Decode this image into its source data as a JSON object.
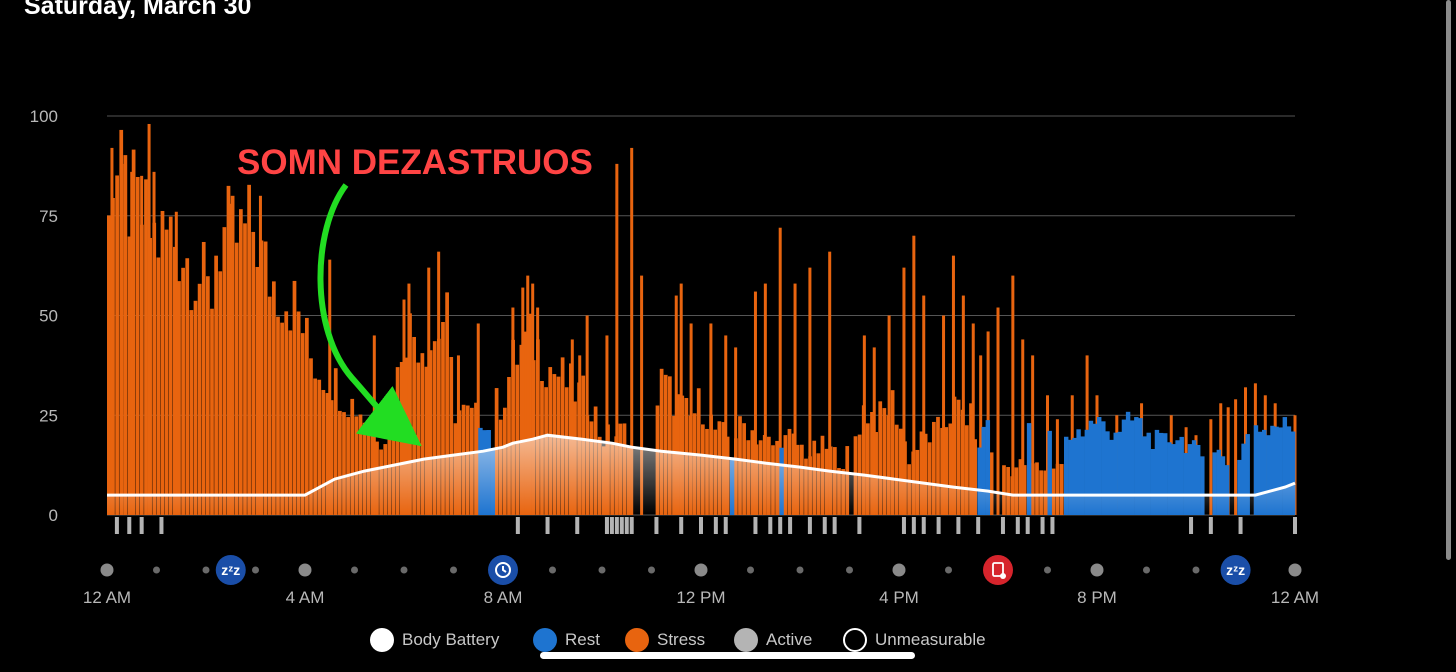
{
  "title": "Saturday, March 30",
  "annotation": {
    "text": "SOMN DEZASTRUOS",
    "color": "#ff4444",
    "arrow_color": "#22dd22"
  },
  "colors": {
    "stress": "#e8640f",
    "rest": "#1e74d0",
    "active": "#b4b4b4",
    "battery": "#ffffff",
    "grid": "#555555"
  },
  "timeline_icons": [
    "sleep-icon",
    "activity-icon",
    "stress-log-icon",
    "sleep-icon"
  ],
  "legend": [
    {
      "label": "Body Battery",
      "swatch": "#ffffff",
      "kind": "fill"
    },
    {
      "label": "Rest",
      "swatch": "#1e74d0",
      "kind": "fill"
    },
    {
      "label": "Stress",
      "swatch": "#e8640f",
      "kind": "fill"
    },
    {
      "label": "Active",
      "swatch": "#b4b4b4",
      "kind": "fill"
    },
    {
      "label": "Unmeasurable",
      "swatch": "#ffffff",
      "kind": "ring"
    }
  ],
  "chart_data": {
    "type": "bar",
    "x_unit": "hours after 12 AM",
    "x_range": [
      0,
      24
    ],
    "ylim": [
      0,
      100
    ],
    "yticks": [
      0,
      25,
      50,
      75,
      100
    ],
    "xticks": [
      {
        "label": "12 AM",
        "hour": 0
      },
      {
        "label": "4 AM",
        "hour": 4
      },
      {
        "label": "8 AM",
        "hour": 8
      },
      {
        "label": "12 PM",
        "hour": 12
      },
      {
        "label": "4 PM",
        "hour": 16
      },
      {
        "label": "8 PM",
        "hour": 20
      },
      {
        "label": "12 AM",
        "hour": 24
      }
    ],
    "grid": true,
    "stress_profile": [
      [
        0,
        90
      ],
      [
        0.2,
        88
      ],
      [
        0.4,
        84
      ],
      [
        0.6,
        80
      ],
      [
        0.8,
        76
      ],
      [
        1.0,
        72
      ],
      [
        1.3,
        74
      ],
      [
        1.5,
        70
      ],
      [
        1.8,
        64
      ],
      [
        2.0,
        60
      ],
      [
        2.1,
        55
      ],
      [
        2.2,
        70
      ],
      [
        2.4,
        74
      ],
      [
        2.6,
        72
      ],
      [
        2.8,
        74
      ],
      [
        3.0,
        76
      ],
      [
        3.1,
        68
      ],
      [
        3.3,
        62
      ],
      [
        3.6,
        58
      ],
      [
        3.8,
        55
      ],
      [
        4.0,
        48
      ],
      [
        4.1,
        42
      ],
      [
        4.3,
        38
      ],
      [
        4.6,
        35
      ],
      [
        4.9,
        30
      ],
      [
        5.1,
        28
      ],
      [
        5.3,
        24
      ],
      [
        5.6,
        20
      ],
      [
        5.8,
        28
      ],
      [
        6.0,
        50
      ],
      [
        6.2,
        48
      ],
      [
        6.4,
        46
      ],
      [
        6.6,
        45
      ],
      [
        6.8,
        52
      ],
      [
        6.9,
        50
      ],
      [
        7.0,
        28
      ],
      [
        7.3,
        26
      ],
      [
        7.6,
        25
      ],
      [
        7.8,
        28
      ],
      [
        8.0,
        30
      ],
      [
        8.2,
        40
      ],
      [
        8.4,
        44
      ],
      [
        8.6,
        46
      ],
      [
        8.8,
        42
      ],
      [
        9.0,
        38
      ],
      [
        9.2,
        36
      ],
      [
        9.5,
        32
      ],
      [
        9.8,
        30
      ],
      [
        10.0,
        20
      ],
      [
        10.5,
        22
      ],
      [
        11.0,
        20
      ],
      [
        11.2,
        35
      ],
      [
        11.5,
        30
      ],
      [
        11.8,
        25
      ],
      [
        12.0,
        30
      ],
      [
        12.3,
        22
      ],
      [
        12.6,
        20
      ],
      [
        12.9,
        24
      ],
      [
        13.2,
        20
      ],
      [
        13.5,
        18
      ],
      [
        13.8,
        20
      ],
      [
        14.2,
        16
      ],
      [
        14.5,
        18
      ],
      [
        14.9,
        14
      ],
      [
        15.1,
        20
      ],
      [
        15.3,
        28
      ],
      [
        15.6,
        25
      ],
      [
        15.9,
        30
      ],
      [
        16.2,
        15
      ],
      [
        16.5,
        20
      ],
      [
        16.8,
        22
      ],
      [
        17.1,
        28
      ],
      [
        17.4,
        26
      ],
      [
        17.7,
        20
      ],
      [
        18.0,
        14
      ],
      [
        18.3,
        12
      ],
      [
        18.6,
        14
      ],
      [
        18.9,
        12
      ],
      [
        19.2,
        14
      ],
      [
        19.5,
        10
      ],
      [
        20.0,
        0
      ],
      [
        22.1,
        0
      ],
      [
        22.4,
        0
      ],
      [
        22.9,
        0
      ],
      [
        23.2,
        0
      ],
      [
        24,
        0
      ]
    ],
    "stress_gaps": [
      [
        10.55,
        11.05
      ],
      [
        15.0,
        15.1
      ],
      [
        17.95,
        18.05
      ]
    ],
    "rest_profile": [
      [
        7.5,
        18
      ],
      [
        7.65,
        25
      ],
      [
        7.8,
        15
      ],
      [
        17.6,
        18
      ],
      [
        17.8,
        22
      ],
      [
        18.0,
        16
      ],
      [
        18.2,
        22
      ],
      [
        18.5,
        24
      ],
      [
        18.8,
        18
      ],
      [
        19.0,
        20
      ],
      [
        19.2,
        16
      ],
      [
        19.5,
        20
      ],
      [
        19.8,
        22
      ],
      [
        20.0,
        24
      ],
      [
        20.2,
        21
      ],
      [
        20.5,
        22
      ],
      [
        20.8,
        24
      ],
      [
        21.0,
        20
      ],
      [
        21.3,
        18
      ],
      [
        21.6,
        20
      ],
      [
        21.8,
        18
      ],
      [
        22.0,
        16
      ],
      [
        22.2,
        14
      ],
      [
        22.5,
        16
      ],
      [
        22.8,
        10
      ],
      [
        23.0,
        20
      ],
      [
        23.2,
        23
      ],
      [
        23.4,
        22
      ],
      [
        23.6,
        24
      ],
      [
        23.8,
        22
      ],
      [
        24,
        22
      ]
    ],
    "rest_ranges": [
      [
        7.5,
        7.85
      ],
      [
        12.6,
        12.65
      ],
      [
        13.6,
        13.65
      ],
      [
        17.6,
        17.85
      ],
      [
        18.6,
        18.65
      ],
      [
        19.0,
        19.05
      ],
      [
        19.3,
        22.15
      ],
      [
        22.35,
        22.65
      ],
      [
        22.8,
        23.05
      ],
      [
        23.2,
        24.0
      ]
    ],
    "stress_spikes": [
      [
        0.1,
        92
      ],
      [
        0.3,
        88
      ],
      [
        0.5,
        86
      ],
      [
        0.7,
        85
      ],
      [
        0.85,
        98
      ],
      [
        0.95,
        86
      ],
      [
        1.4,
        76
      ],
      [
        2.5,
        78
      ],
      [
        3.1,
        80
      ],
      [
        4.5,
        64
      ],
      [
        5.4,
        45
      ],
      [
        6.0,
        54
      ],
      [
        6.1,
        58
      ],
      [
        6.5,
        62
      ],
      [
        6.7,
        66
      ],
      [
        7.1,
        40
      ],
      [
        7.5,
        48
      ],
      [
        8.2,
        52
      ],
      [
        8.4,
        57
      ],
      [
        8.5,
        60
      ],
      [
        8.6,
        58
      ],
      [
        8.7,
        52
      ],
      [
        9.4,
        44
      ],
      [
        9.55,
        40
      ],
      [
        9.7,
        50
      ],
      [
        10.1,
        45
      ],
      [
        10.3,
        88
      ],
      [
        10.6,
        92
      ],
      [
        10.8,
        60
      ],
      [
        11.5,
        55
      ],
      [
        11.6,
        58
      ],
      [
        11.8,
        48
      ],
      [
        12.2,
        48
      ],
      [
        12.5,
        45
      ],
      [
        12.7,
        42
      ],
      [
        13.1,
        56
      ],
      [
        13.3,
        58
      ],
      [
        13.6,
        72
      ],
      [
        13.9,
        58
      ],
      [
        14.2,
        62
      ],
      [
        14.6,
        66
      ],
      [
        15.3,
        45
      ],
      [
        15.5,
        42
      ],
      [
        15.8,
        50
      ],
      [
        16.1,
        62
      ],
      [
        16.3,
        70
      ],
      [
        16.5,
        55
      ],
      [
        16.9,
        50
      ],
      [
        17.1,
        65
      ],
      [
        17.3,
        55
      ],
      [
        17.5,
        48
      ],
      [
        17.65,
        40
      ],
      [
        17.8,
        46
      ],
      [
        18.0,
        52
      ],
      [
        18.3,
        60
      ],
      [
        18.5,
        44
      ],
      [
        18.7,
        40
      ],
      [
        19.0,
        30
      ],
      [
        19.2,
        24
      ],
      [
        19.5,
        30
      ],
      [
        19.8,
        40
      ],
      [
        20.0,
        30
      ],
      [
        20.4,
        25
      ],
      [
        20.9,
        28
      ],
      [
        21.5,
        25
      ],
      [
        21.8,
        22
      ],
      [
        22.0,
        20
      ],
      [
        22.3,
        24
      ],
      [
        22.5,
        28
      ],
      [
        22.65,
        27
      ],
      [
        22.8,
        29
      ],
      [
        23.0,
        32
      ],
      [
        23.2,
        33
      ],
      [
        23.4,
        30
      ],
      [
        23.6,
        28
      ],
      [
        23.8,
        20
      ],
      [
        24,
        25
      ]
    ],
    "active_ticks": [
      0.2,
      0.45,
      0.7,
      1.1,
      8.3,
      8.9,
      9.5,
      10.1,
      10.2,
      10.3,
      10.4,
      10.5,
      10.6,
      11.1,
      11.6,
      12.0,
      12.3,
      12.5,
      13.1,
      13.4,
      13.6,
      13.8,
      14.2,
      14.5,
      14.7,
      15.2,
      16.1,
      16.3,
      16.5,
      16.8,
      17.2,
      17.6,
      18.1,
      18.4,
      18.6,
      18.9,
      19.1,
      21.9,
      22.3,
      22.9,
      24.0
    ],
    "body_battery": [
      [
        0,
        5
      ],
      [
        4,
        5
      ],
      [
        4.3,
        7
      ],
      [
        4.6,
        9
      ],
      [
        4.9,
        10
      ],
      [
        5.2,
        11
      ],
      [
        5.6,
        12
      ],
      [
        6.0,
        13
      ],
      [
        6.4,
        14
      ],
      [
        7.0,
        15
      ],
      [
        7.6,
        16
      ],
      [
        8.0,
        17
      ],
      [
        8.2,
        18
      ],
      [
        8.6,
        19
      ],
      [
        8.9,
        20
      ],
      [
        9.6,
        19
      ],
      [
        10.2,
        18
      ],
      [
        10.6,
        17
      ],
      [
        11.2,
        16
      ],
      [
        12.0,
        15
      ],
      [
        12.7,
        14
      ],
      [
        13.3,
        13
      ],
      [
        14.0,
        12
      ],
      [
        14.6,
        11
      ],
      [
        15.3,
        10
      ],
      [
        15.9,
        9
      ],
      [
        16.5,
        8
      ],
      [
        17.1,
        7
      ],
      [
        17.8,
        6
      ],
      [
        18.3,
        5
      ],
      [
        23.2,
        5
      ],
      [
        23.5,
        6
      ],
      [
        23.8,
        7
      ],
      [
        24,
        8
      ]
    ],
    "xlabel": "",
    "ylabel": ""
  }
}
